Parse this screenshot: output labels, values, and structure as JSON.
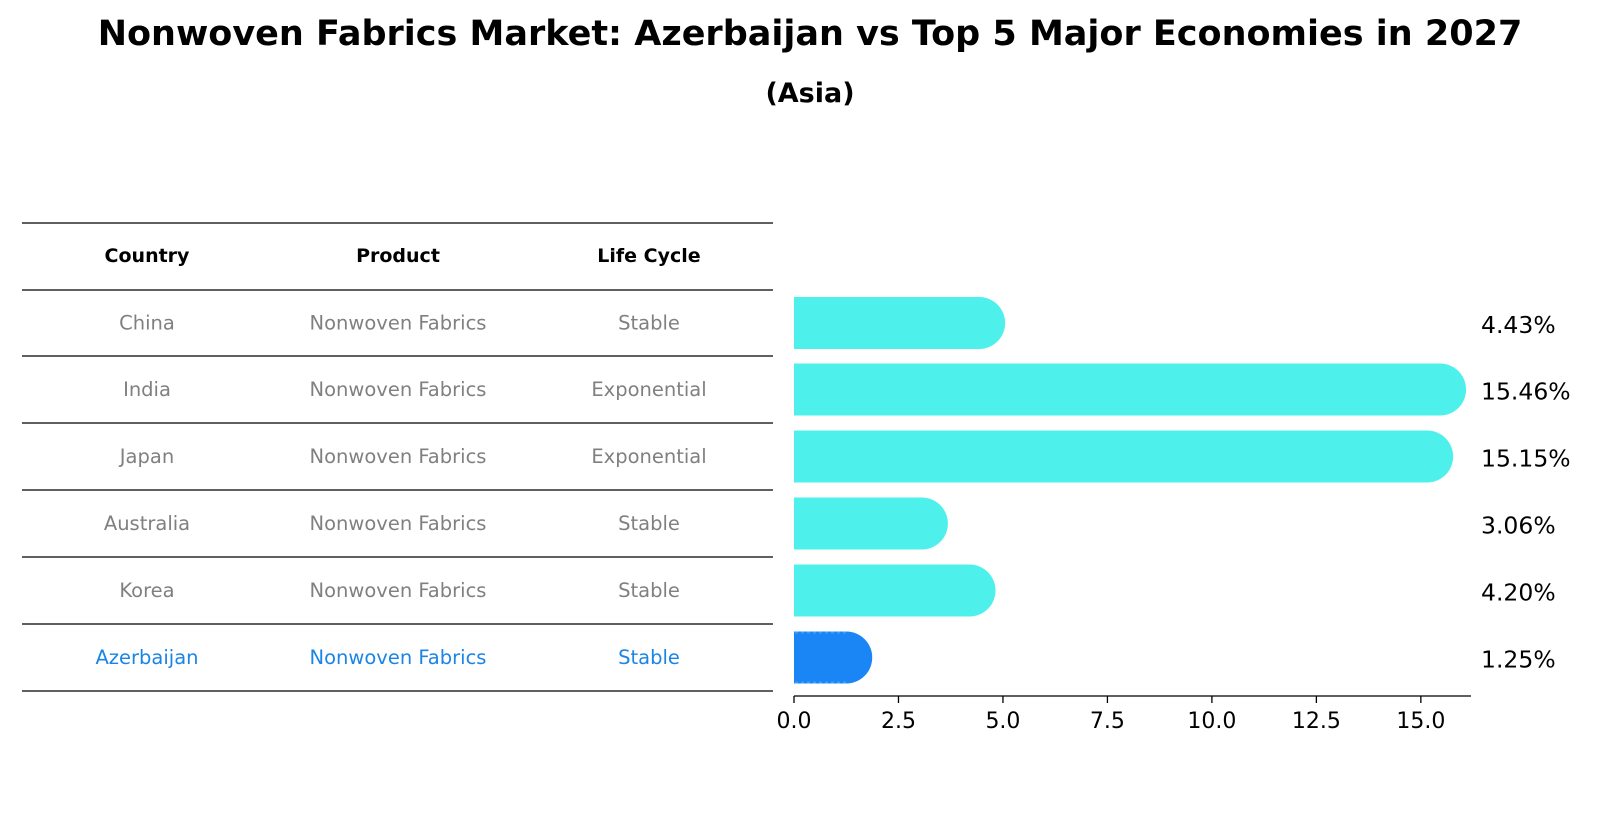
{
  "title": "Nonwoven Fabrics Market: Azerbaijan vs Top 5 Major Economies in 2027",
  "subtitle": "(Asia)",
  "table": {
    "headers": [
      "Country",
      "Product",
      "Life Cycle"
    ],
    "rows": [
      {
        "country": "China",
        "product": "Nonwoven Fabrics",
        "life_cycle": "Stable"
      },
      {
        "country": "India",
        "product": "Nonwoven Fabrics",
        "life_cycle": "Exponential"
      },
      {
        "country": "Japan",
        "product": "Nonwoven Fabrics",
        "life_cycle": "Exponential"
      },
      {
        "country": "Australia",
        "product": "Nonwoven Fabrics",
        "life_cycle": "Stable"
      },
      {
        "country": "Korea",
        "product": "Nonwoven Fabrics",
        "life_cycle": "Stable"
      },
      {
        "country": "Azerbaijan",
        "product": "Nonwoven Fabrics",
        "life_cycle": "Stable"
      }
    ]
  },
  "colors": {
    "bar": "#4ef0eb",
    "highlight": "#1a85f5",
    "highlight_text": "#1a85e6",
    "muted_text": "#808080"
  },
  "chart_data": {
    "type": "bar",
    "orientation": "horizontal",
    "categories": [
      "China",
      "India",
      "Japan",
      "Australia",
      "Korea",
      "Azerbaijan"
    ],
    "values": [
      4.43,
      15.46,
      15.15,
      3.06,
      4.2,
      1.25
    ],
    "value_labels": [
      "4.43%",
      "15.46%",
      "15.15%",
      "3.06%",
      "4.20%",
      "1.25%"
    ],
    "highlight": "Azerbaijan",
    "xlim": [
      0,
      16.2
    ],
    "xticks": [
      0.0,
      2.5,
      5.0,
      7.5,
      10.0,
      12.5,
      15.0
    ],
    "xtick_labels": [
      "0.0",
      "2.5",
      "5.0",
      "7.5",
      "10.0",
      "12.5",
      "15.0"
    ],
    "grid": false
  }
}
